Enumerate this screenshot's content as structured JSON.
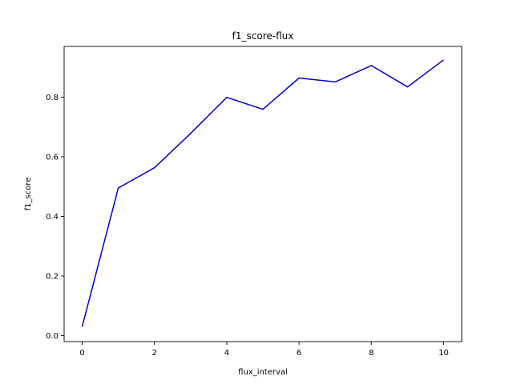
{
  "chart_data": {
    "type": "line",
    "title": "f1_score-flux",
    "xlabel": "flux_interval",
    "ylabel": "f1_score",
    "xlim": [
      -0.5,
      10.5
    ],
    "ylim": [
      -0.02,
      0.97
    ],
    "xticks": [
      0,
      2,
      4,
      6,
      8,
      10
    ],
    "yticks": [
      0.0,
      0.2,
      0.4,
      0.6,
      0.8
    ],
    "ytick_labels": [
      "0.0",
      "0.2",
      "0.4",
      "0.6",
      "0.8"
    ],
    "grid": false,
    "series": [
      {
        "color": "#0000cc",
        "x": [
          0,
          1,
          2,
          3,
          4,
          5,
          6,
          7,
          8,
          9,
          10
        ],
        "y": [
          0.03,
          0.495,
          0.563,
          0.678,
          0.799,
          0.759,
          0.864,
          0.851,
          0.906,
          0.834,
          0.925
        ]
      }
    ]
  }
}
